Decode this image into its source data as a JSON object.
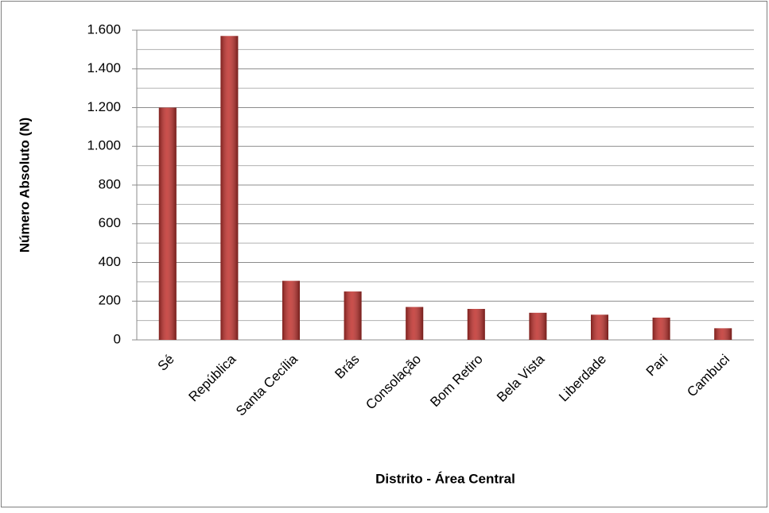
{
  "chart_data": {
    "type": "bar",
    "x_label": "Distrito - Área Central",
    "y_label": "Número Absoluto (N)",
    "categories": [
      "Sé",
      "República",
      "Santa Cecília",
      "Brás",
      "Consolação",
      "Bom Retiro",
      "Bela Vista",
      "Liberdade",
      "Pari",
      "Cambuci"
    ],
    "values": [
      1200,
      1570,
      305,
      250,
      170,
      160,
      140,
      130,
      115,
      60
    ],
    "color": "#c0302c",
    "ylim": [
      0,
      1600
    ],
    "yticks": [
      0,
      200,
      400,
      600,
      800,
      {
        "value": 1000,
        "label": "1.000"
      },
      {
        "value": 1200,
        "label": "1.200"
      },
      {
        "value": 1400,
        "label": "1.400"
      },
      {
        "value": 1600,
        "label": "1.600"
      }
    ],
    "grid": true
  }
}
